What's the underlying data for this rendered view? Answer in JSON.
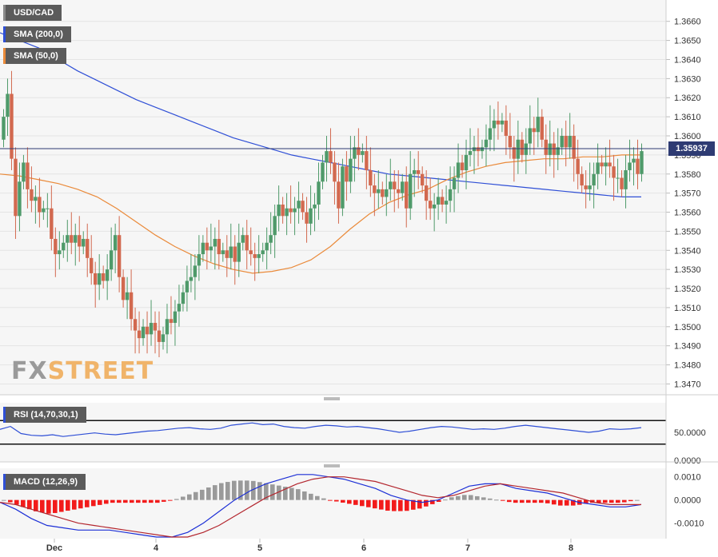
{
  "pair": "USD/CAD",
  "current_price": "1.35937",
  "brand": {
    "left": "FX",
    "right": "STREET"
  },
  "colors": {
    "up_candle": "#4f9a6a",
    "down_candle": "#d2694f",
    "sma200": "#2f4fd6",
    "sma50": "#ea8a3a",
    "price_line": "#2e3b73",
    "rsi_line": "#2f4fd6",
    "macd_line": "#1c2fd6",
    "signal_line": "#b3262e",
    "hist_pos": "#9a9a9a",
    "hist_neg": "#f21b1b"
  },
  "chart_data": [
    {
      "type": "candlestick",
      "title": "USD/CAD",
      "x_labels": [
        "Dec",
        "4",
        "5",
        "6",
        "7",
        "8"
      ],
      "y_ticks": [
        "1.3660",
        "1.3650",
        "1.3640",
        "1.3630",
        "1.3620",
        "1.3610",
        "1.3600",
        "1.3590",
        "1.3580",
        "1.3570",
        "1.3560",
        "1.3550",
        "1.3540",
        "1.3530",
        "1.3520",
        "1.3510",
        "1.3500",
        "1.3490",
        "1.3480",
        "1.3470"
      ],
      "ylim": [
        1.3466,
        1.3667
      ],
      "last": 1.35937,
      "legend": [
        "SMA (200,0)",
        "SMA (50,0)"
      ],
      "close": [
        1.361,
        1.3622,
        1.3588,
        1.3558,
        1.3576,
        1.3586,
        1.3572,
        1.3566,
        1.3568,
        1.356,
        1.3562,
        1.3562,
        1.3546,
        1.3538,
        1.354,
        1.3544,
        1.3548,
        1.3544,
        1.3548,
        1.3542,
        1.3546,
        1.3536,
        1.3528,
        1.3522,
        1.3528,
        1.3524,
        1.353,
        1.354,
        1.3548,
        1.3526,
        1.3514,
        1.3518,
        1.3504,
        1.3498,
        1.3494,
        1.35,
        1.3496,
        1.3502,
        1.3498,
        1.3492,
        1.3496,
        1.3504,
        1.3502,
        1.3508,
        1.3512,
        1.3518,
        1.3524,
        1.3526,
        1.3532,
        1.3538,
        1.3544,
        1.354,
        1.3542,
        1.3546,
        1.3538,
        1.354,
        1.3536,
        1.3542,
        1.3534,
        1.3544,
        1.3548,
        1.354,
        1.3538,
        1.3536,
        1.3538,
        1.354,
        1.3544,
        1.3548,
        1.3558,
        1.3564,
        1.3558,
        1.3562,
        1.356,
        1.3562,
        1.3566,
        1.356,
        1.3554,
        1.3562,
        1.3564,
        1.3576,
        1.3586,
        1.3592,
        1.3586,
        1.3576,
        1.3562,
        1.3584,
        1.3576,
        1.3588,
        1.3594,
        1.359,
        1.3592,
        1.3582,
        1.3574,
        1.357,
        1.3572,
        1.3568,
        1.3572,
        1.3576,
        1.3572,
        1.357,
        1.3576,
        1.3562,
        1.358,
        1.3582,
        1.358,
        1.3574,
        1.3566,
        1.3562,
        1.3564,
        1.3568,
        1.3564,
        1.3566,
        1.3572,
        1.3578,
        1.3586,
        1.3582,
        1.359,
        1.3592,
        1.3594,
        1.3592,
        1.3594,
        1.3598,
        1.3604,
        1.3608,
        1.3606,
        1.3608,
        1.36,
        1.3594,
        1.3588,
        1.3598,
        1.359,
        1.3596,
        1.3604,
        1.3602,
        1.361,
        1.3598,
        1.359,
        1.3596,
        1.359,
        1.3594,
        1.36,
        1.3594,
        1.36,
        1.3588,
        1.358,
        1.3574,
        1.3572,
        1.3574,
        1.358,
        1.3586,
        1.3584,
        1.3586,
        1.3584,
        1.3578,
        1.3578,
        1.3572,
        1.3582,
        1.3586,
        1.3588,
        1.358,
        1.3592
      ],
      "series": [
        {
          "name": "SMA (200,0)",
          "values": [
            1.3654,
            1.365,
            1.3646,
            1.364,
            1.3634,
            1.3629,
            1.3624,
            1.3619,
            1.3615,
            1.3611,
            1.3607,
            1.3603,
            1.3599,
            1.3596,
            1.3593,
            1.359,
            1.3588,
            1.3586,
            1.3584,
            1.3582,
            1.358,
            1.3579,
            1.3578,
            1.3577,
            1.3576,
            1.3575,
            1.3574,
            1.3573,
            1.3572,
            1.3571,
            1.357,
            1.3569,
            1.3568,
            1.3568
          ]
        },
        {
          "name": "SMA (50,0)",
          "values": [
            1.358,
            1.3579,
            1.3577,
            1.3575,
            1.3572,
            1.3568,
            1.3562,
            1.3555,
            1.3548,
            1.3542,
            1.3537,
            1.3533,
            1.353,
            1.3528,
            1.3529,
            1.3531,
            1.3535,
            1.3542,
            1.3551,
            1.3559,
            1.3565,
            1.3569,
            1.3572,
            1.3577,
            1.3581,
            1.3584,
            1.3586,
            1.3587,
            1.3588,
            1.3588,
            1.3589,
            1.3589,
            1.359,
            1.359
          ]
        }
      ]
    },
    {
      "type": "line",
      "title": "RSI (14,70,30,1)",
      "y_ticks": [
        "50.0000",
        "0.0000"
      ],
      "levels": [
        70,
        30
      ],
      "series": [
        {
          "name": "RSI (14,70,30,1)",
          "values": [
            55,
            60,
            48,
            45,
            44,
            46,
            43,
            45,
            47,
            49,
            47,
            46,
            48,
            50,
            52,
            53,
            55,
            57,
            58,
            56,
            55,
            57,
            62,
            64,
            66,
            63,
            64,
            60,
            58,
            57,
            60,
            62,
            61,
            59,
            60,
            58,
            56,
            53,
            50,
            52,
            55,
            58,
            60,
            59,
            57,
            55,
            56,
            55,
            57,
            60,
            62,
            60,
            58,
            56,
            54,
            52,
            50,
            52,
            56,
            55,
            56,
            58
          ]
        }
      ]
    },
    {
      "type": "line",
      "title": "MACD (12,26,9)",
      "y_ticks": [
        "0.0010",
        "0.0000",
        "-0.0010"
      ],
      "ylim": [
        -0.0016,
        0.0013
      ],
      "series": [
        {
          "name": "MACD",
          "values": [
            -0.0001,
            -0.0004,
            -0.0008,
            -0.0011,
            -0.0012,
            -0.0013,
            -0.0013,
            -0.0013,
            -0.0014,
            -0.0015,
            -0.0016,
            -0.0016,
            -0.0014,
            -0.001,
            -0.0005,
            0.0,
            0.0004,
            0.0007,
            0.0009,
            0.0011,
            0.0011,
            0.001,
            0.0009,
            0.0007,
            0.0005,
            0.0002,
            0.0,
            -0.0001,
            0.0,
            0.0003,
            0.0006,
            0.0007,
            0.0007,
            0.0005,
            0.0004,
            0.0003,
            0.0001,
            -0.0001,
            -0.0002,
            -0.0003,
            -0.0003,
            -0.0002
          ]
        },
        {
          "name": "Signal",
          "values": [
            -0.0001,
            -0.0002,
            -0.0004,
            -0.0006,
            -0.0008,
            -0.001,
            -0.0011,
            -0.0012,
            -0.0013,
            -0.0014,
            -0.0015,
            -0.0016,
            -0.0016,
            -0.0014,
            -0.0011,
            -0.0007,
            -0.0003,
            0.0001,
            0.0004,
            0.0007,
            0.0009,
            0.001,
            0.001,
            0.0009,
            0.0008,
            0.0006,
            0.0004,
            0.0002,
            0.0001,
            0.0002,
            0.0004,
            0.0006,
            0.0007,
            0.0006,
            0.0005,
            0.0004,
            0.0003,
            0.0001,
            -0.0001,
            -0.0002,
            -0.0002,
            -0.0002
          ]
        }
      ]
    }
  ]
}
